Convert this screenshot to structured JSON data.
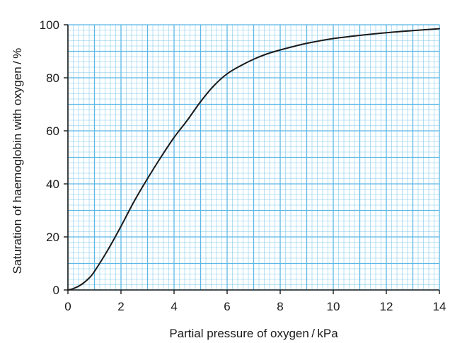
{
  "chart_data": {
    "type": "line",
    "title": "",
    "xlabel": "Partial pressure of oxygen / kPa",
    "ylabel": "Saturation of haemoglobin with oxygen / %",
    "xlim": [
      0,
      14
    ],
    "ylim": [
      0,
      100
    ],
    "x_ticks": [
      0,
      2,
      4,
      6,
      8,
      10,
      12,
      14
    ],
    "y_ticks": [
      0,
      20,
      40,
      60,
      80,
      100
    ],
    "grid": true,
    "grid_minor_step_x": 0.2,
    "grid_minor_step_y": 2,
    "grid_major_step_x": 1,
    "grid_major_step_y": 10,
    "grid_color": "#5cb8e6",
    "line_color": "#1a1a1a",
    "series": [
      {
        "x": [
          0,
          0.2,
          0.5,
          0.8,
          1.0,
          1.5,
          2.0,
          2.5,
          3.0,
          3.5,
          4.0,
          4.5,
          5.0,
          5.5,
          6.0,
          6.5,
          7.0,
          7.5,
          8.0,
          8.5,
          9.0,
          10.0,
          11.0,
          12.0,
          13.0,
          14.0
        ],
        "values": [
          0,
          0.5,
          2,
          4.5,
          7,
          15,
          24,
          33.5,
          42,
          50,
          57.5,
          64,
          71,
          77,
          81.5,
          84.5,
          87,
          89,
          90.5,
          91.8,
          93,
          94.8,
          96,
          97,
          97.8,
          98.5
        ]
      }
    ]
  }
}
